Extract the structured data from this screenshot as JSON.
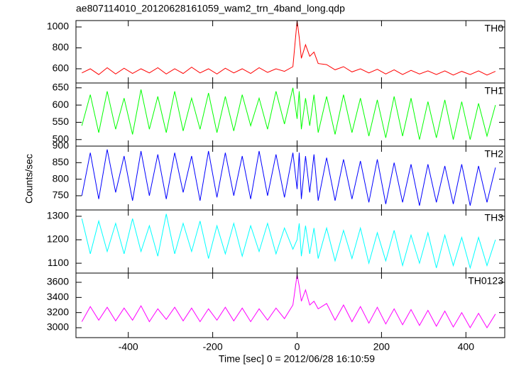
{
  "chart_data": [
    {
      "type": "line",
      "title": "ae807114010_20120628161059_wam2_trn_4band_long.qdp",
      "x": [
        -510,
        -490,
        -470,
        -450,
        -430,
        -410,
        -390,
        -370,
        -350,
        -330,
        -310,
        -290,
        -270,
        -250,
        -230,
        -210,
        -190,
        -170,
        -150,
        -130,
        -110,
        -90,
        -70,
        -50,
        -30,
        -10,
        0,
        5,
        10,
        20,
        30,
        40,
        50,
        70,
        90,
        110,
        130,
        150,
        170,
        190,
        210,
        230,
        250,
        270,
        290,
        310,
        330,
        350,
        370,
        390,
        410,
        430,
        450,
        470
      ],
      "series": [
        {
          "name": "TH0",
          "color": "#ff0000",
          "values": [
            560,
            600,
            545,
            610,
            550,
            605,
            555,
            600,
            560,
            610,
            550,
            600,
            555,
            615,
            560,
            600,
            550,
            605,
            560,
            600,
            555,
            610,
            565,
            600,
            575,
            620,
            1060,
            900,
            700,
            830,
            720,
            760,
            650,
            640,
            590,
            620,
            570,
            600,
            560,
            595,
            550,
            590,
            545,
            585,
            550,
            580,
            545,
            580,
            540,
            575,
            545,
            580,
            540,
            575
          ]
        }
      ],
      "xlim": [
        -524,
        492
      ],
      "xticks": [
        -400,
        -200,
        0,
        200,
        400
      ],
      "ylim": [
        464,
        1061
      ],
      "yticks": [
        600,
        800,
        1000
      ]
    },
    {
      "type": "line",
      "x": [
        -510,
        -490,
        -470,
        -450,
        -430,
        -410,
        -390,
        -370,
        -350,
        -330,
        -310,
        -290,
        -270,
        -250,
        -230,
        -210,
        -190,
        -170,
        -150,
        -130,
        -110,
        -90,
        -70,
        -50,
        -30,
        -10,
        0,
        5,
        10,
        20,
        30,
        40,
        50,
        70,
        90,
        110,
        130,
        150,
        170,
        190,
        210,
        230,
        250,
        270,
        290,
        310,
        330,
        350,
        370,
        390,
        410,
        430,
        450,
        470
      ],
      "series": [
        {
          "name": "TH1",
          "color": "#00ff00",
          "values": [
            540,
            630,
            520,
            640,
            530,
            620,
            515,
            645,
            530,
            625,
            520,
            640,
            525,
            620,
            530,
            635,
            520,
            625,
            525,
            630,
            540,
            620,
            530,
            640,
            545,
            650,
            560,
            640,
            530,
            620,
            540,
            630,
            520,
            625,
            515,
            630,
            520,
            620,
            510,
            615,
            505,
            625,
            510,
            620,
            500,
            610,
            505,
            615,
            500,
            610,
            500,
            605,
            510,
            600
          ]
        }
      ],
      "xlim": [
        -524,
        492
      ],
      "xticks": [
        -400,
        -200,
        0,
        200,
        400
      ],
      "ylim": [
        481,
        664
      ],
      "yticks": [
        500,
        550,
        600,
        650
      ]
    },
    {
      "type": "line",
      "ylabel": "Counts/sec",
      "x": [
        -510,
        -490,
        -470,
        -450,
        -430,
        -410,
        -390,
        -370,
        -350,
        -330,
        -310,
        -290,
        -270,
        -250,
        -230,
        -210,
        -190,
        -170,
        -150,
        -130,
        -110,
        -90,
        -70,
        -50,
        -30,
        -10,
        0,
        5,
        10,
        20,
        30,
        40,
        50,
        70,
        90,
        110,
        130,
        150,
        170,
        190,
        210,
        230,
        250,
        270,
        290,
        310,
        330,
        350,
        370,
        390,
        410,
        430,
        450,
        470
      ],
      "series": [
        {
          "name": "TH2",
          "color": "#0000ff",
          "values": [
            750,
            880,
            740,
            890,
            760,
            870,
            735,
            885,
            750,
            875,
            740,
            880,
            760,
            870,
            735,
            885,
            745,
            880,
            750,
            870,
            740,
            885,
            750,
            875,
            745,
            880,
            770,
            880,
            740,
            870,
            760,
            875,
            735,
            865,
            735,
            860,
            740,
            855,
            730,
            860,
            725,
            850,
            730,
            845,
            720,
            845,
            730,
            840,
            725,
            845,
            720,
            840,
            730,
            835
          ]
        }
      ],
      "xlim": [
        -524,
        492
      ],
      "xticks": [
        -400,
        -200,
        0,
        200,
        400
      ],
      "ylim": [
        707,
        900
      ],
      "yticks": [
        750,
        800,
        850,
        900
      ]
    },
    {
      "type": "line",
      "x": [
        -510,
        -490,
        -470,
        -450,
        -430,
        -410,
        -390,
        -370,
        -350,
        -330,
        -310,
        -290,
        -270,
        -250,
        -230,
        -210,
        -190,
        -170,
        -150,
        -130,
        -110,
        -90,
        -70,
        -50,
        -30,
        -10,
        0,
        5,
        10,
        20,
        30,
        40,
        50,
        70,
        90,
        110,
        130,
        150,
        170,
        190,
        210,
        230,
        250,
        270,
        290,
        310,
        330,
        350,
        370,
        390,
        410,
        430,
        450,
        470
      ],
      "series": [
        {
          "name": "TH3",
          "color": "#00ffff",
          "values": [
            1290,
            1140,
            1280,
            1150,
            1270,
            1140,
            1290,
            1150,
            1260,
            1130,
            1310,
            1140,
            1270,
            1150,
            1280,
            1120,
            1260,
            1140,
            1270,
            1130,
            1260,
            1150,
            1270,
            1140,
            1250,
            1160,
            1200,
            1270,
            1130,
            1260,
            1140,
            1250,
            1120,
            1250,
            1110,
            1240,
            1120,
            1250,
            1100,
            1230,
            1110,
            1240,
            1090,
            1220,
            1100,
            1230,
            1080,
            1220,
            1090,
            1210,
            1080,
            1210,
            1090,
            1200
          ]
        }
      ],
      "xlim": [
        -524,
        492
      ],
      "xticks": [
        -400,
        -200,
        0,
        200,
        400
      ],
      "ylim": [
        1058,
        1327
      ],
      "yticks": [
        1100,
        1200,
        1300
      ]
    },
    {
      "type": "line",
      "xlabel": "Time [sec] 0 = 2012/06/28 16:10:59",
      "x": [
        -510,
        -490,
        -470,
        -450,
        -430,
        -410,
        -390,
        -370,
        -350,
        -330,
        -310,
        -290,
        -270,
        -250,
        -230,
        -210,
        -190,
        -170,
        -150,
        -130,
        -110,
        -90,
        -70,
        -50,
        -30,
        -10,
        0,
        5,
        10,
        20,
        30,
        40,
        50,
        70,
        90,
        110,
        130,
        150,
        170,
        190,
        210,
        230,
        250,
        270,
        290,
        310,
        330,
        350,
        370,
        390,
        410,
        430,
        450,
        470
      ],
      "series": [
        {
          "name": "TH0123",
          "color": "#ff00ff",
          "values": [
            3080,
            3280,
            3100,
            3270,
            3090,
            3260,
            3100,
            3290,
            3080,
            3250,
            3110,
            3270,
            3090,
            3260,
            3080,
            3250,
            3100,
            3270,
            3090,
            3260,
            3080,
            3250,
            3100,
            3260,
            3120,
            3300,
            3700,
            3550,
            3350,
            3500,
            3300,
            3350,
            3250,
            3320,
            3100,
            3300,
            3080,
            3280,
            3060,
            3270,
            3050,
            3250,
            3040,
            3240,
            3030,
            3230,
            3020,
            3220,
            3010,
            3200,
            3000,
            3190,
            3000,
            3180
          ]
        }
      ],
      "xlim": [
        -524,
        492
      ],
      "xticks": [
        -400,
        -200,
        0,
        200,
        400
      ],
      "ylim": [
        2869,
        3722
      ],
      "yticks": [
        3000,
        3200,
        3400,
        3600
      ]
    }
  ]
}
